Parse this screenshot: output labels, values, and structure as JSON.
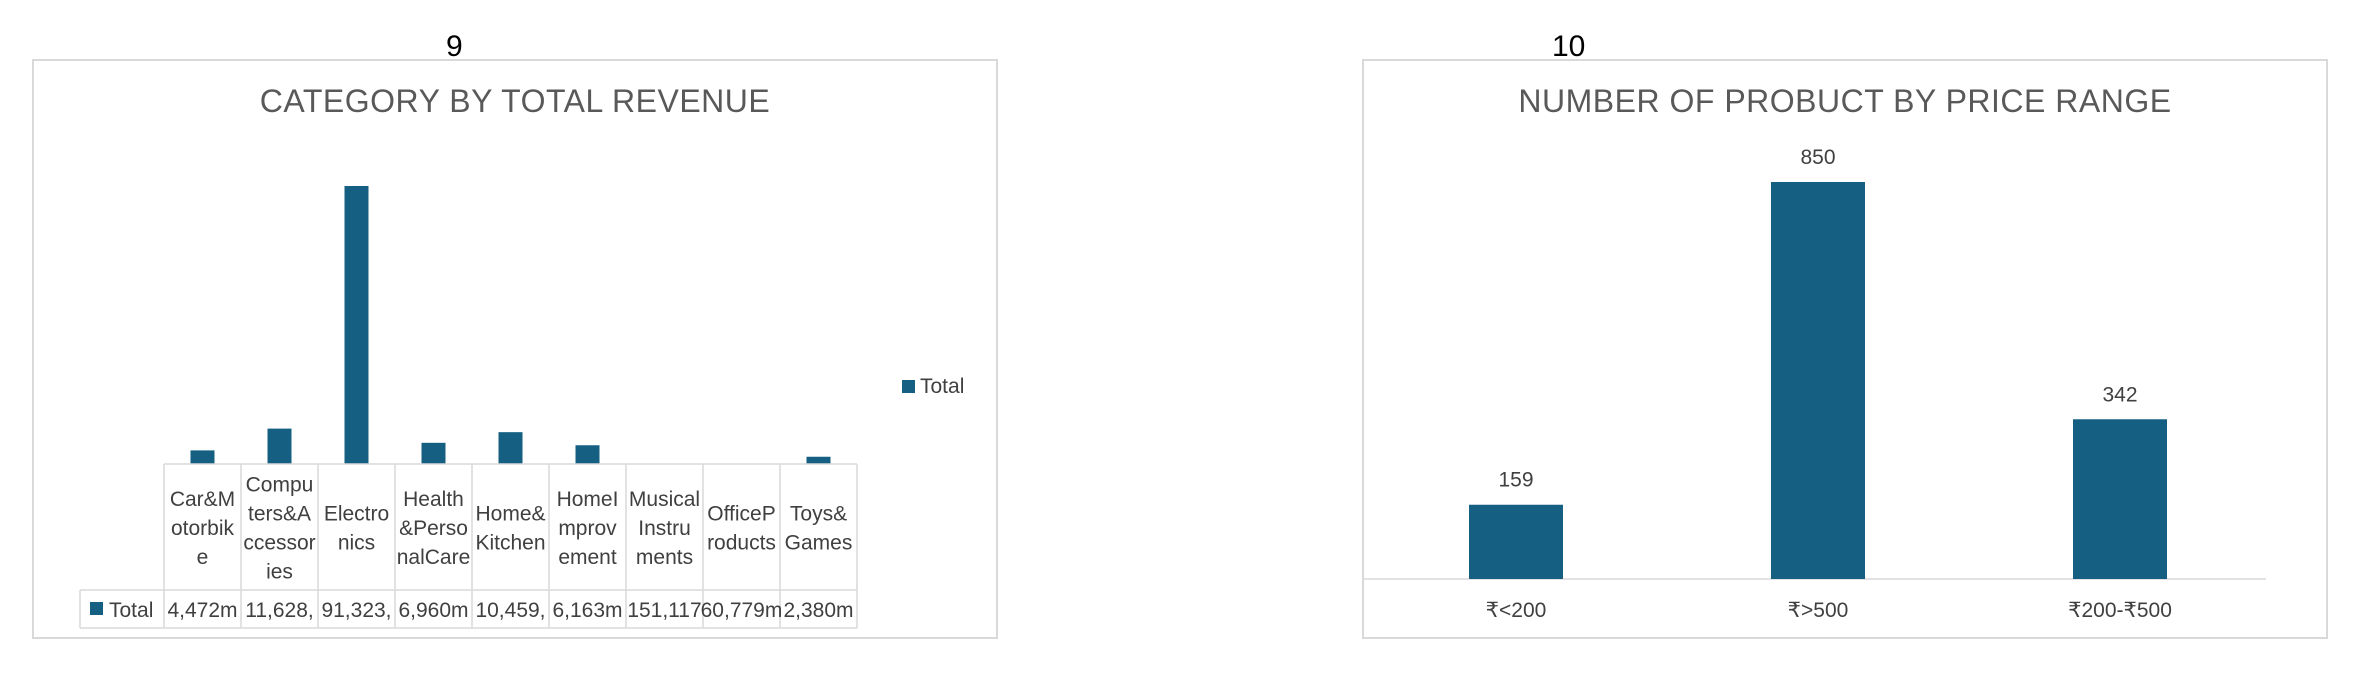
{
  "pages": {
    "left": "9",
    "right": "10"
  },
  "colors": {
    "bar": "#156082",
    "border": "#d9d9d9",
    "grid": "#d9d9d9",
    "text": "#404040"
  },
  "chart_data": [
    {
      "type": "bar",
      "title": "CATEGORY BY TOTAL REVENUE",
      "categories": [
        "Car&Motorbike",
        "Computers&Accessories",
        "Electronics",
        "Health&PersonalCare",
        "Home&Kitchen",
        "HomeImprovement",
        "MusicalInstruments",
        "OfficeProducts",
        "Toys&Games"
      ],
      "category_label_lines": [
        [
          "Car&M",
          "otorbik",
          "e"
        ],
        [
          "Compu",
          "ters&A",
          "ccessor",
          "ies"
        ],
        [
          "Electro",
          "nics"
        ],
        [
          "Health",
          "&Perso",
          "nalCare"
        ],
        [
          "Home&",
          "Kitchen"
        ],
        [
          "HomeI",
          "mprov",
          "ement"
        ],
        [
          "Musical",
          "Instru",
          "ments"
        ],
        [
          "OfficeP",
          "roducts"
        ],
        [
          "Toys&",
          "Games"
        ]
      ],
      "series": [
        {
          "name": "Total",
          "values": [
            4472,
            11628,
            91323,
            6960,
            10459,
            6163,
            151.117,
            60.779,
            2380
          ]
        }
      ],
      "data_table_values": [
        "4,472m",
        "11,628,",
        "91,323,",
        "6,960m",
        "10,459,",
        "6,163m",
        "151,117",
        "60,779m",
        "2,380m"
      ],
      "value_unit": "m",
      "ylim": [
        0,
        91323
      ],
      "legend": {
        "position": "right",
        "entries": [
          "Total"
        ]
      },
      "data_table": true,
      "grid": false
    },
    {
      "type": "bar",
      "title": "NUMBER OF PROBUCT BY PRICE RANGE",
      "categories": [
        "₹<200",
        "₹>500",
        "₹200-₹500"
      ],
      "series": [
        {
          "values": [
            159,
            850,
            342
          ]
        }
      ],
      "ylim": [
        0,
        850
      ],
      "data_labels": true,
      "grid": false
    }
  ]
}
